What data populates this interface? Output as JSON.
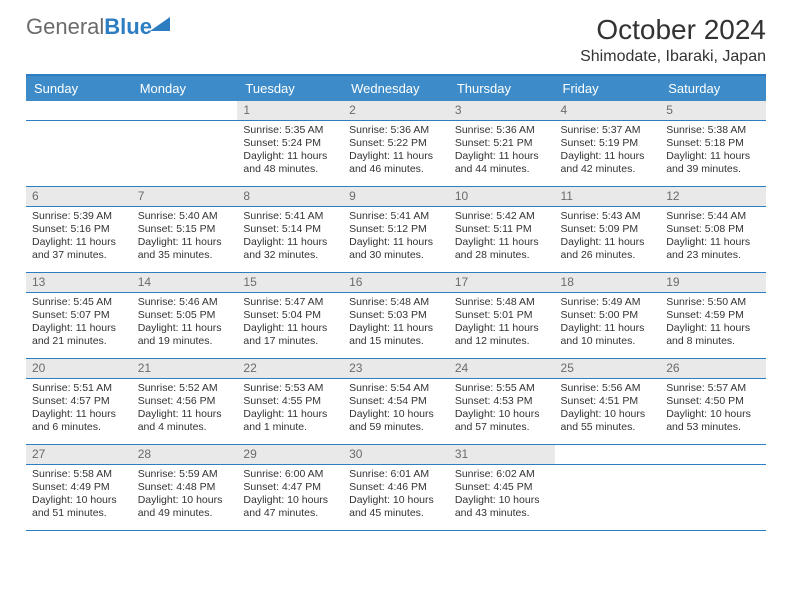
{
  "brand": {
    "part1": "General",
    "part2": "Blue"
  },
  "title": "October 2024",
  "location": "Shimodate, Ibaraki, Japan",
  "colors": {
    "header_bg": "#3d8cc9",
    "accent": "#2d7dc2",
    "daynum_bg": "#e9e9e9",
    "text": "#333333"
  },
  "weekdays": [
    "Sunday",
    "Monday",
    "Tuesday",
    "Wednesday",
    "Thursday",
    "Friday",
    "Saturday"
  ],
  "weeks": [
    [
      null,
      null,
      {
        "n": "1",
        "sr": "5:35 AM",
        "ss": "5:24 PM",
        "dl": "11 hours and 48 minutes."
      },
      {
        "n": "2",
        "sr": "5:36 AM",
        "ss": "5:22 PM",
        "dl": "11 hours and 46 minutes."
      },
      {
        "n": "3",
        "sr": "5:36 AM",
        "ss": "5:21 PM",
        "dl": "11 hours and 44 minutes."
      },
      {
        "n": "4",
        "sr": "5:37 AM",
        "ss": "5:19 PM",
        "dl": "11 hours and 42 minutes."
      },
      {
        "n": "5",
        "sr": "5:38 AM",
        "ss": "5:18 PM",
        "dl": "11 hours and 39 minutes."
      }
    ],
    [
      {
        "n": "6",
        "sr": "5:39 AM",
        "ss": "5:16 PM",
        "dl": "11 hours and 37 minutes."
      },
      {
        "n": "7",
        "sr": "5:40 AM",
        "ss": "5:15 PM",
        "dl": "11 hours and 35 minutes."
      },
      {
        "n": "8",
        "sr": "5:41 AM",
        "ss": "5:14 PM",
        "dl": "11 hours and 32 minutes."
      },
      {
        "n": "9",
        "sr": "5:41 AM",
        "ss": "5:12 PM",
        "dl": "11 hours and 30 minutes."
      },
      {
        "n": "10",
        "sr": "5:42 AM",
        "ss": "5:11 PM",
        "dl": "11 hours and 28 minutes."
      },
      {
        "n": "11",
        "sr": "5:43 AM",
        "ss": "5:09 PM",
        "dl": "11 hours and 26 minutes."
      },
      {
        "n": "12",
        "sr": "5:44 AM",
        "ss": "5:08 PM",
        "dl": "11 hours and 23 minutes."
      }
    ],
    [
      {
        "n": "13",
        "sr": "5:45 AM",
        "ss": "5:07 PM",
        "dl": "11 hours and 21 minutes."
      },
      {
        "n": "14",
        "sr": "5:46 AM",
        "ss": "5:05 PM",
        "dl": "11 hours and 19 minutes."
      },
      {
        "n": "15",
        "sr": "5:47 AM",
        "ss": "5:04 PM",
        "dl": "11 hours and 17 minutes."
      },
      {
        "n": "16",
        "sr": "5:48 AM",
        "ss": "5:03 PM",
        "dl": "11 hours and 15 minutes."
      },
      {
        "n": "17",
        "sr": "5:48 AM",
        "ss": "5:01 PM",
        "dl": "11 hours and 12 minutes."
      },
      {
        "n": "18",
        "sr": "5:49 AM",
        "ss": "5:00 PM",
        "dl": "11 hours and 10 minutes."
      },
      {
        "n": "19",
        "sr": "5:50 AM",
        "ss": "4:59 PM",
        "dl": "11 hours and 8 minutes."
      }
    ],
    [
      {
        "n": "20",
        "sr": "5:51 AM",
        "ss": "4:57 PM",
        "dl": "11 hours and 6 minutes."
      },
      {
        "n": "21",
        "sr": "5:52 AM",
        "ss": "4:56 PM",
        "dl": "11 hours and 4 minutes."
      },
      {
        "n": "22",
        "sr": "5:53 AM",
        "ss": "4:55 PM",
        "dl": "11 hours and 1 minute."
      },
      {
        "n": "23",
        "sr": "5:54 AM",
        "ss": "4:54 PM",
        "dl": "10 hours and 59 minutes."
      },
      {
        "n": "24",
        "sr": "5:55 AM",
        "ss": "4:53 PM",
        "dl": "10 hours and 57 minutes."
      },
      {
        "n": "25",
        "sr": "5:56 AM",
        "ss": "4:51 PM",
        "dl": "10 hours and 55 minutes."
      },
      {
        "n": "26",
        "sr": "5:57 AM",
        "ss": "4:50 PM",
        "dl": "10 hours and 53 minutes."
      }
    ],
    [
      {
        "n": "27",
        "sr": "5:58 AM",
        "ss": "4:49 PM",
        "dl": "10 hours and 51 minutes."
      },
      {
        "n": "28",
        "sr": "5:59 AM",
        "ss": "4:48 PM",
        "dl": "10 hours and 49 minutes."
      },
      {
        "n": "29",
        "sr": "6:00 AM",
        "ss": "4:47 PM",
        "dl": "10 hours and 47 minutes."
      },
      {
        "n": "30",
        "sr": "6:01 AM",
        "ss": "4:46 PM",
        "dl": "10 hours and 45 minutes."
      },
      {
        "n": "31",
        "sr": "6:02 AM",
        "ss": "4:45 PM",
        "dl": "10 hours and 43 minutes."
      },
      null,
      null
    ]
  ],
  "labels": {
    "sunrise": "Sunrise:",
    "sunset": "Sunset:",
    "daylight": "Daylight:"
  }
}
